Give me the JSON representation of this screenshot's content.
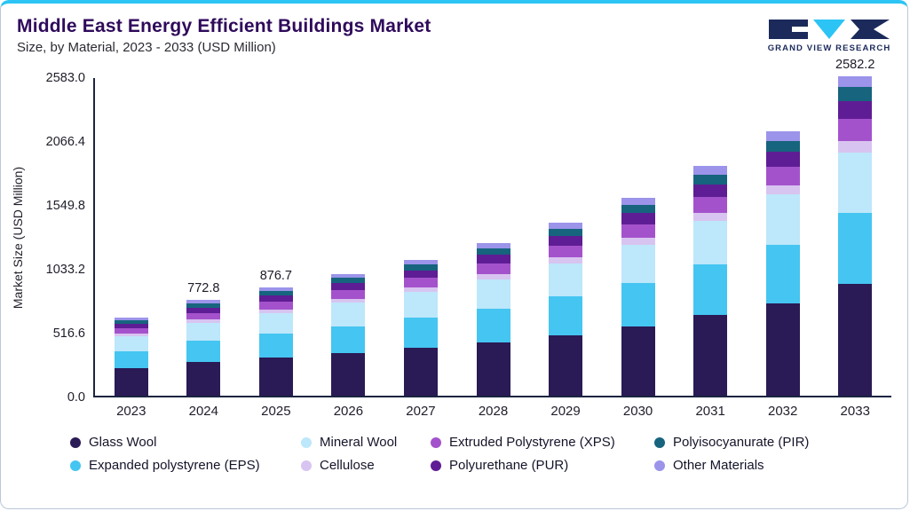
{
  "header": {
    "title": "Middle East Energy Efficient Buildings Market",
    "subtitle": "Size, by Material, 2023 - 2033 (USD Million)",
    "logo_text": "GRAND VIEW RESEARCH"
  },
  "colors": {
    "accent_top_bar": "#2cc4f4",
    "title": "#2f0a5b",
    "axis": "#1b2440",
    "glass_wool": "#2a1a55",
    "expanded_polystyrene_eps": "#45c5f1",
    "mineral_wool": "#bde7fa",
    "cellulose": "#d8c4f0",
    "extruded_polystyrene_xps": "#a452cc",
    "polyurethane_pur": "#5e1d94",
    "polyisocyanurate_pir": "#16647e",
    "other_materials": "#9b94ea"
  },
  "chart_data": {
    "type": "bar",
    "stacked": true,
    "title": "Middle East Energy Efficient Buildings Market Size, by Material, 2023 - 2033 (USD Million)",
    "xlabel": "",
    "ylabel": "Market Size (USD Million)",
    "ylim": [
      0,
      2583.0
    ],
    "ytick_labels": [
      "2583.0",
      "2066.4",
      "1549.8",
      "1033.2",
      "516.6",
      "0.0"
    ],
    "grid": false,
    "legend_position": "bottom",
    "categories": [
      "2023",
      "2024",
      "2025",
      "2026",
      "2027",
      "2028",
      "2029",
      "2030",
      "2031",
      "2032",
      "2033"
    ],
    "bar_labels": [
      null,
      "772.8",
      "876.7",
      null,
      null,
      null,
      null,
      null,
      null,
      null,
      "2582.2"
    ],
    "totals": [
      632,
      772.8,
      876.7,
      985,
      1100,
      1235,
      1400,
      1600,
      1855,
      2135,
      2582.2
    ],
    "series": [
      {
        "name": "Glass Wool",
        "color_key": "glass_wool",
        "values": [
          222,
          271,
          307,
          345,
          385,
          432,
          490,
          560,
          649,
          747,
          904
        ]
      },
      {
        "name": "Expanded polystyrene (EPS)",
        "color_key": "expanded_polystyrene_eps",
        "values": [
          140,
          171,
          194,
          218,
          243,
          273,
          310,
          354,
          411,
          473,
          572
        ]
      },
      {
        "name": "Mineral Wool",
        "color_key": "mineral_wool",
        "values": [
          120,
          147,
          167,
          187,
          209,
          235,
          266,
          304,
          352,
          406,
          491
        ]
      },
      {
        "name": "Cellulose",
        "color_key": "cellulose",
        "values": [
          22,
          27,
          31,
          35,
          39,
          44,
          50,
          57,
          66,
          76,
          92
        ]
      },
      {
        "name": "Extruded Polystyrene (XPS)",
        "color_key": "extruded_polystyrene_xps",
        "values": [
          44,
          54,
          61,
          69,
          77,
          86,
          98,
          112,
          130,
          149,
          181
        ]
      },
      {
        "name": "Polyurethane (PUR)",
        "color_key": "polyurethane_pur",
        "values": [
          35,
          43,
          49,
          55,
          61,
          69,
          78,
          89,
          103,
          119,
          144
        ]
      },
      {
        "name": "Polyisocyanurate (PIR)",
        "color_key": "polyisocyanurate_pir",
        "values": [
          27,
          33,
          37,
          42,
          47,
          52,
          59,
          68,
          79,
          91,
          110
        ]
      },
      {
        "name": "Other Materials",
        "color_key": "other_materials",
        "values": [
          22,
          26.8,
          30.7,
          34,
          39,
          44,
          49,
          56,
          65,
          74,
          88.2
        ]
      }
    ],
    "legend_items": [
      {
        "label": "Glass Wool",
        "color_key": "glass_wool"
      },
      {
        "label": "Mineral Wool",
        "color_key": "mineral_wool"
      },
      {
        "label": "Extruded Polystyrene (XPS)",
        "color_key": "extruded_polystyrene_xps"
      },
      {
        "label": "Polyisocyanurate (PIR)",
        "color_key": "polyisocyanurate_pir"
      },
      {
        "label": "Expanded polystyrene (EPS)",
        "color_key": "expanded_polystyrene_eps"
      },
      {
        "label": "Cellulose",
        "color_key": "cellulose"
      },
      {
        "label": "Polyurethane (PUR)",
        "color_key": "polyurethane_pur"
      },
      {
        "label": "Other Materials",
        "color_key": "other_materials"
      }
    ]
  }
}
